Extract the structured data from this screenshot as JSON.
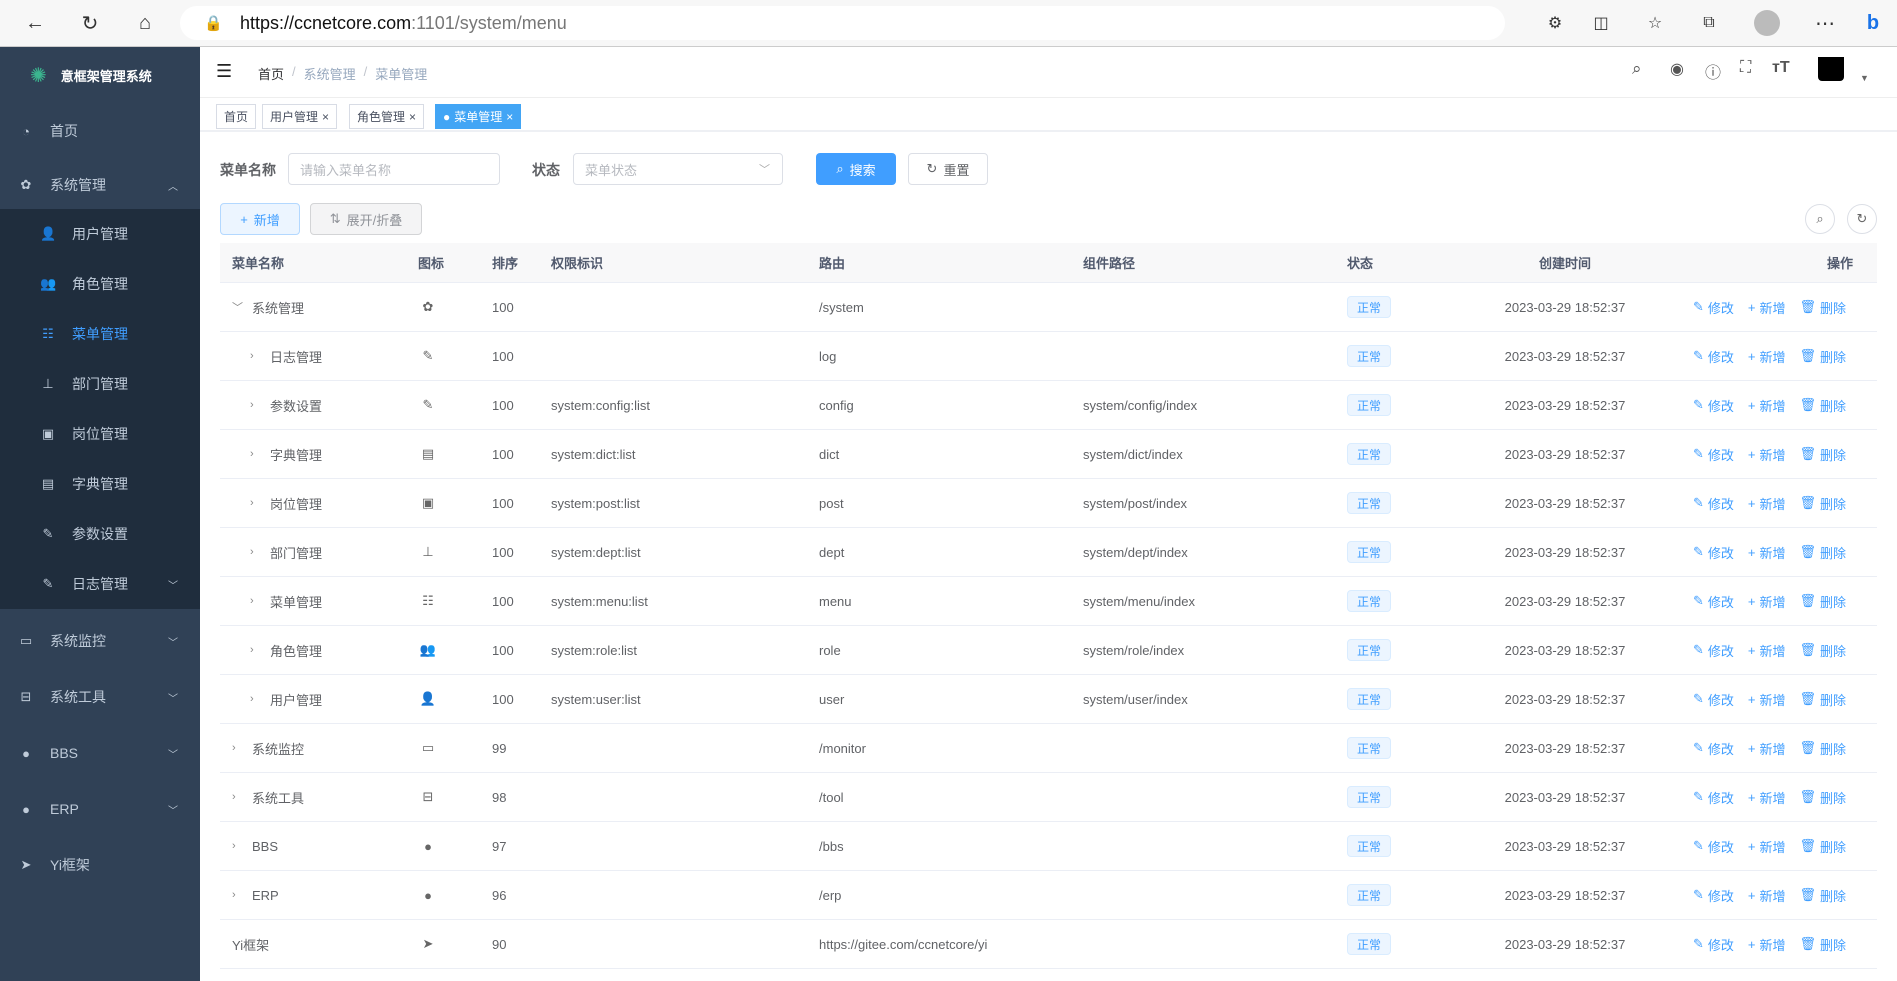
{
  "browser": {
    "url_host": "https://ccnetcore.com",
    "url_rest": ":1101/system/menu"
  },
  "sidebar": {
    "title": "意框架管理系统",
    "items": [
      {
        "label": "首页",
        "icon": "dashboard-icon",
        "sub": false,
        "arrow": ""
      },
      {
        "label": "系统管理",
        "icon": "gear-icon",
        "sub": false,
        "arrow": "up"
      },
      {
        "label": "用户管理",
        "icon": "user-icon",
        "sub": true,
        "arrow": ""
      },
      {
        "label": "角色管理",
        "icon": "peoples-icon",
        "sub": true,
        "arrow": ""
      },
      {
        "label": "菜单管理",
        "icon": "tree-table-icon",
        "sub": true,
        "arrow": "",
        "active": true
      },
      {
        "label": "部门管理",
        "icon": "tree-icon",
        "sub": true,
        "arrow": ""
      },
      {
        "label": "岗位管理",
        "icon": "post-icon",
        "sub": true,
        "arrow": ""
      },
      {
        "label": "字典管理",
        "icon": "dict-icon",
        "sub": true,
        "arrow": ""
      },
      {
        "label": "参数设置",
        "icon": "edit-icon",
        "sub": true,
        "arrow": ""
      },
      {
        "label": "日志管理",
        "icon": "log-icon",
        "sub": true,
        "arrow": "down"
      },
      {
        "label": "系统监控",
        "icon": "monitor-icon",
        "sub": false,
        "arrow": "down"
      },
      {
        "label": "系统工具",
        "icon": "tool-icon",
        "sub": false,
        "arrow": "down"
      },
      {
        "label": "BBS",
        "icon": "globe-icon",
        "sub": false,
        "arrow": "down"
      },
      {
        "label": "ERP",
        "icon": "globe-icon",
        "sub": false,
        "arrow": "down"
      },
      {
        "label": "Yi框架",
        "icon": "send-icon",
        "sub": false,
        "arrow": ""
      }
    ]
  },
  "breadcrumb": [
    "首页",
    "系统管理",
    "菜单管理"
  ],
  "tags": [
    {
      "label": "首页",
      "closable": false
    },
    {
      "label": "用户管理",
      "closable": true
    },
    {
      "label": "角色管理",
      "closable": true
    },
    {
      "label": "菜单管理",
      "closable": true,
      "active": true
    }
  ],
  "search": {
    "name_label": "菜单名称",
    "name_placeholder": "请输入菜单名称",
    "status_label": "状态",
    "status_placeholder": "菜单状态",
    "search_btn": "搜索",
    "reset_btn": "重置"
  },
  "toolbar": {
    "add_btn": "新增",
    "toggle_btn": "展开/折叠"
  },
  "table": {
    "headers": [
      "菜单名称",
      "图标",
      "排序",
      "权限标识",
      "路由",
      "组件路径",
      "状态",
      "创建时间",
      "操作"
    ],
    "actions": [
      "修改",
      "新增",
      "删除"
    ],
    "rows": [
      {
        "name": "系统管理",
        "level": 0,
        "expand": "open",
        "icon": "gear-icon",
        "sort": "100",
        "perm": "",
        "route": "/system",
        "comp": "",
        "status": "正常",
        "time": "2023-03-29 18:52:37"
      },
      {
        "name": "日志管理",
        "level": 1,
        "expand": "closed",
        "icon": "log-icon",
        "sort": "100",
        "perm": "",
        "route": "log",
        "comp": "",
        "status": "正常",
        "time": "2023-03-29 18:52:37"
      },
      {
        "name": "参数设置",
        "level": 1,
        "expand": "closed",
        "icon": "edit-icon",
        "sort": "100",
        "perm": "system:config:list",
        "route": "config",
        "comp": "system/config/index",
        "status": "正常",
        "time": "2023-03-29 18:52:37"
      },
      {
        "name": "字典管理",
        "level": 1,
        "expand": "closed",
        "icon": "dict-icon",
        "sort": "100",
        "perm": "system:dict:list",
        "route": "dict",
        "comp": "system/dict/index",
        "status": "正常",
        "time": "2023-03-29 18:52:37"
      },
      {
        "name": "岗位管理",
        "level": 1,
        "expand": "closed",
        "icon": "post-icon",
        "sort": "100",
        "perm": "system:post:list",
        "route": "post",
        "comp": "system/post/index",
        "status": "正常",
        "time": "2023-03-29 18:52:37"
      },
      {
        "name": "部门管理",
        "level": 1,
        "expand": "closed",
        "icon": "tree-icon",
        "sort": "100",
        "perm": "system:dept:list",
        "route": "dept",
        "comp": "system/dept/index",
        "status": "正常",
        "time": "2023-03-29 18:52:37"
      },
      {
        "name": "菜单管理",
        "level": 1,
        "expand": "closed",
        "icon": "tree-table-icon",
        "sort": "100",
        "perm": "system:menu:list",
        "route": "menu",
        "comp": "system/menu/index",
        "status": "正常",
        "time": "2023-03-29 18:52:37"
      },
      {
        "name": "角色管理",
        "level": 1,
        "expand": "closed",
        "icon": "peoples-icon",
        "sort": "100",
        "perm": "system:role:list",
        "route": "role",
        "comp": "system/role/index",
        "status": "正常",
        "time": "2023-03-29 18:52:37"
      },
      {
        "name": "用户管理",
        "level": 1,
        "expand": "closed",
        "icon": "user-icon",
        "sort": "100",
        "perm": "system:user:list",
        "route": "user",
        "comp": "system/user/index",
        "status": "正常",
        "time": "2023-03-29 18:52:37"
      },
      {
        "name": "系统监控",
        "level": 0,
        "expand": "closed",
        "icon": "monitor-icon",
        "sort": "99",
        "perm": "",
        "route": "/monitor",
        "comp": "",
        "status": "正常",
        "time": "2023-03-29 18:52:37"
      },
      {
        "name": "系统工具",
        "level": 0,
        "expand": "closed",
        "icon": "tool-icon",
        "sort": "98",
        "perm": "",
        "route": "/tool",
        "comp": "",
        "status": "正常",
        "time": "2023-03-29 18:52:37"
      },
      {
        "name": "BBS",
        "level": 0,
        "expand": "closed",
        "icon": "globe-icon",
        "sort": "97",
        "perm": "",
        "route": "/bbs",
        "comp": "",
        "status": "正常",
        "time": "2023-03-29 18:52:37"
      },
      {
        "name": "ERP",
        "level": 0,
        "expand": "closed",
        "icon": "globe-icon",
        "sort": "96",
        "perm": "",
        "route": "/erp",
        "comp": "",
        "status": "正常",
        "time": "2023-03-29 18:52:37"
      },
      {
        "name": "Yi框架",
        "level": 0,
        "expand": "none",
        "icon": "send-icon",
        "sort": "90",
        "perm": "",
        "route": "https://gitee.com/ccnetcore/yi",
        "comp": "",
        "status": "正常",
        "time": "2023-03-29 18:52:37"
      }
    ]
  },
  "colors": {
    "primary": "#409eff",
    "sidebar": "#304156",
    "submenu": "#1f2d3d"
  }
}
